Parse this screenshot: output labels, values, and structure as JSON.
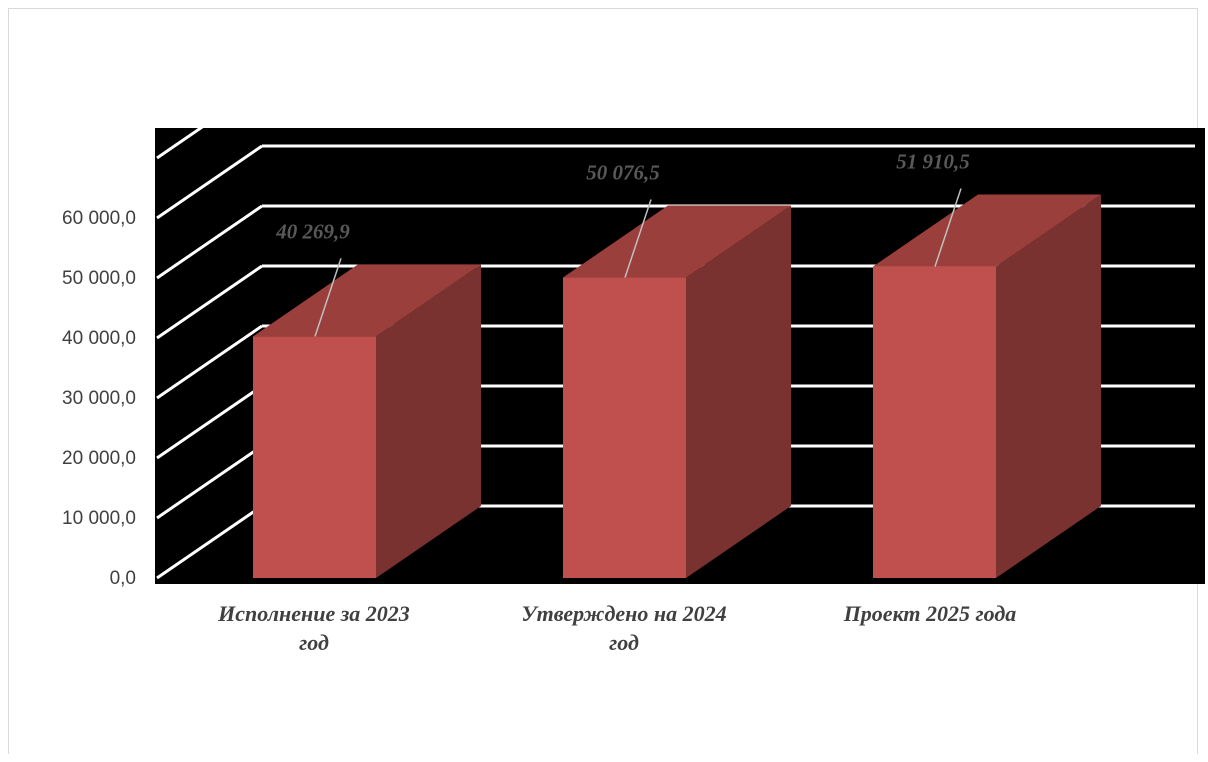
{
  "chart_data": {
    "type": "bar",
    "style": "3d-column",
    "title": "",
    "xlabel": "",
    "ylabel": "",
    "categories": [
      [
        "Исполнение за  2023",
        "год"
      ],
      [
        "Утверждено на 2024",
        "год"
      ],
      [
        "Проект   2025  года"
      ]
    ],
    "values": [
      40269.9,
      50076.5,
      51910.5
    ],
    "data_labels": [
      "40 269,9",
      "50 076,5",
      "51 910,5"
    ],
    "ylim": [
      0,
      70000
    ],
    "y_ticks": [
      0,
      10000,
      20000,
      30000,
      40000,
      50000,
      60000
    ],
    "y_tick_labels": [
      "0,0",
      "10 000,0",
      "20 000,0",
      "30 000,0",
      "40 000,0",
      "50 000,0",
      "60 000,0"
    ],
    "grid": true,
    "legend": "none",
    "colors": {
      "plot_background": "#000000",
      "bar_front": "#c0504d",
      "bar_top": "#9b3f3c",
      "bar_side": "#7a3230",
      "gridline": "#ffffff",
      "tick_text": "#404040",
      "data_label_text": "#595959"
    }
  }
}
